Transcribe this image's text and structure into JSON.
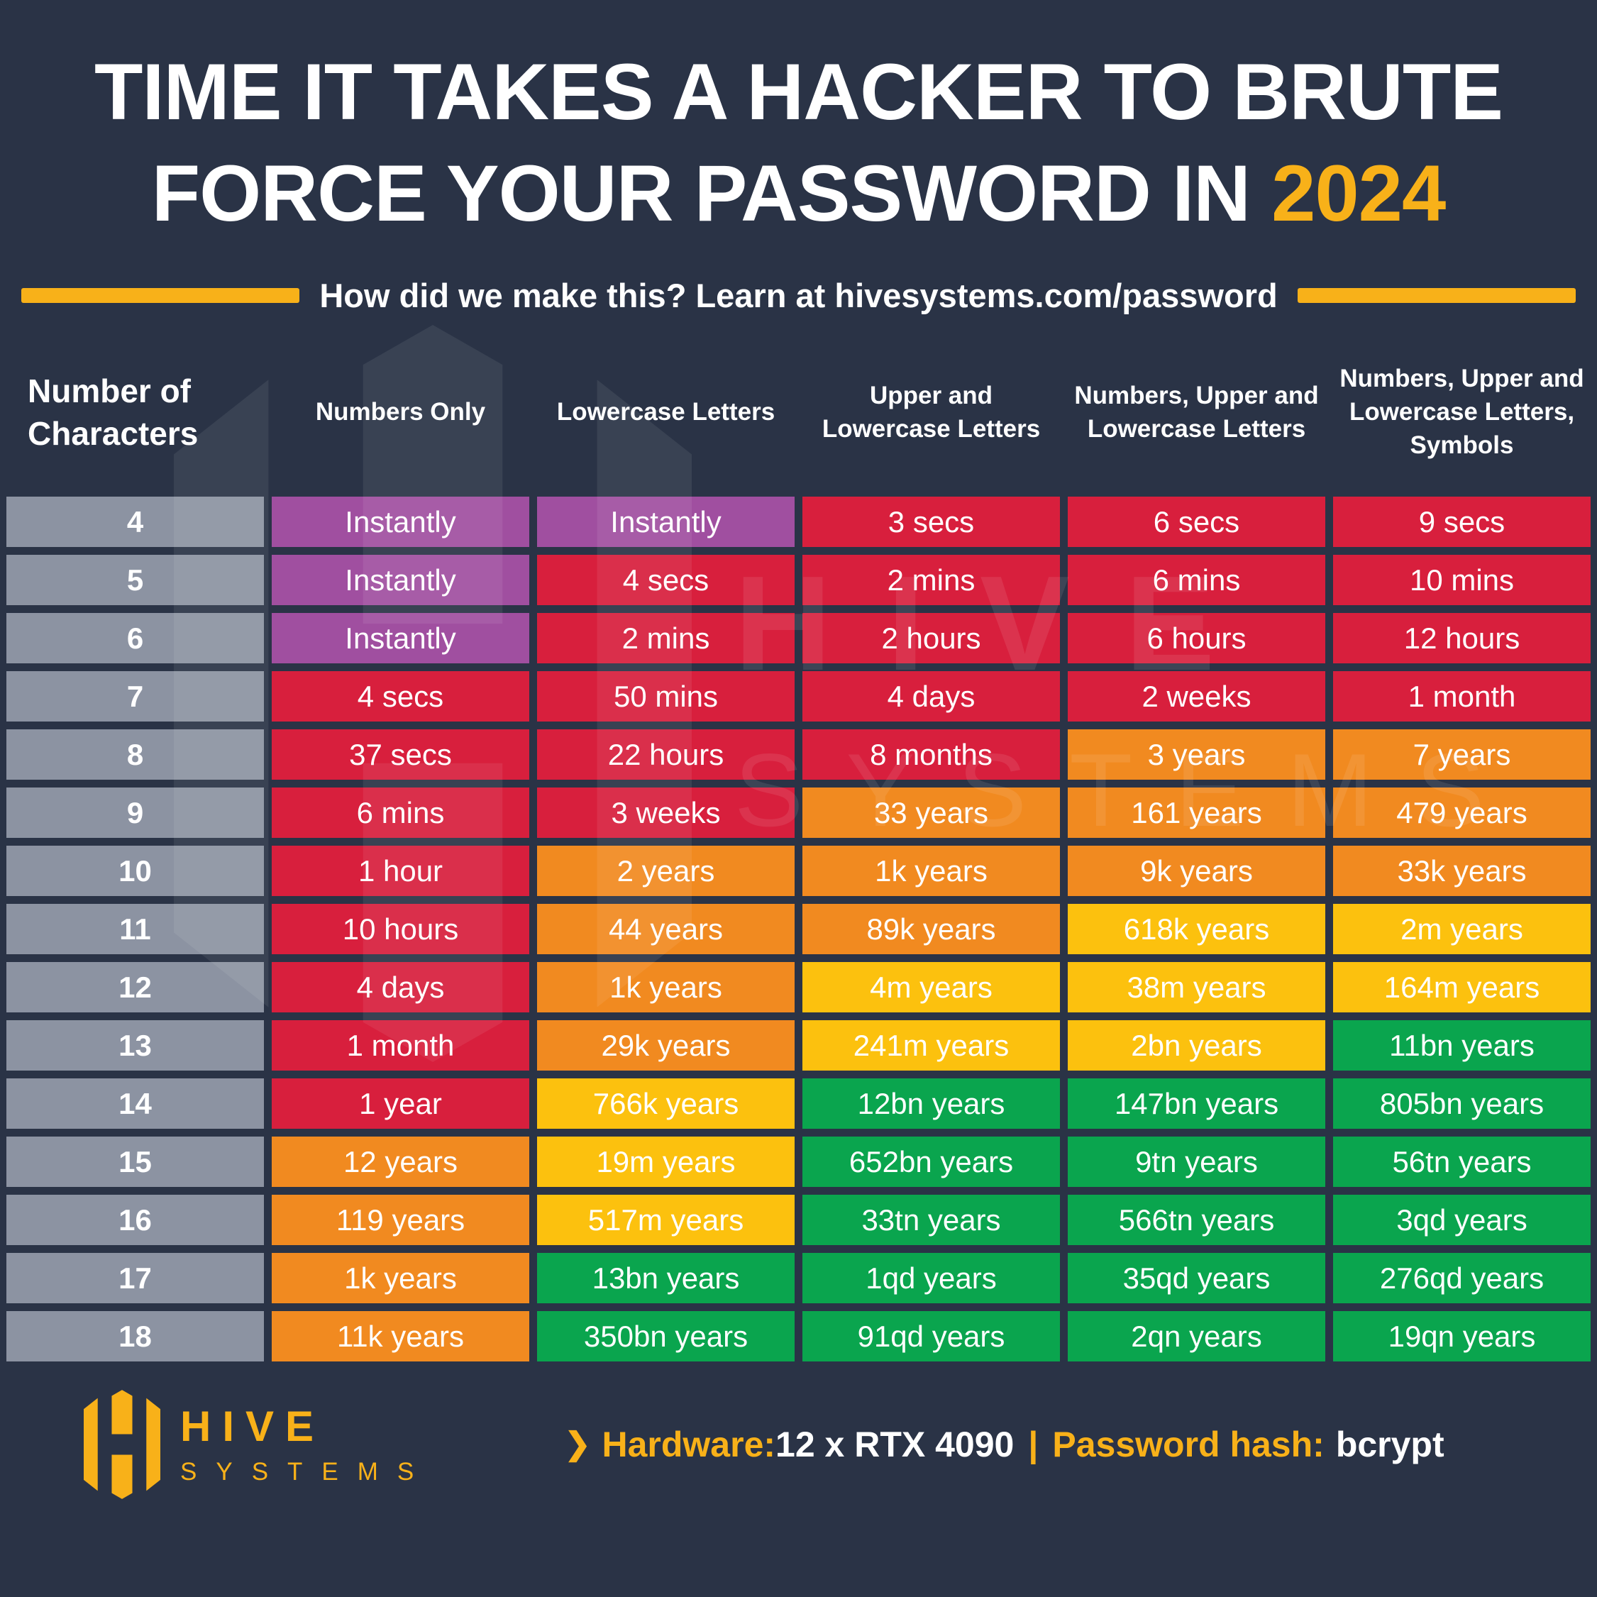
{
  "title": {
    "line1": "TIME IT TAKES A HACKER TO BRUTE",
    "line2_prefix": "FORCE YOUR PASSWORD IN ",
    "year": "2024"
  },
  "subtitle": "How did we make this? Learn at hivesystems.com/password",
  "table": {
    "headers": [
      "Number of Characters",
      "Numbers Only",
      "Lowercase Letters",
      "Upper and Lowercase Letters",
      "Numbers, Upper and Lowercase Letters",
      "Numbers, Upper and Lowercase Letters, Symbols"
    ],
    "rows": [
      {
        "n": "4",
        "cells": [
          [
            "Instantly",
            "p"
          ],
          [
            "Instantly",
            "p"
          ],
          [
            "3 secs",
            "r"
          ],
          [
            "6 secs",
            "r"
          ],
          [
            "9 secs",
            "r"
          ]
        ]
      },
      {
        "n": "5",
        "cells": [
          [
            "Instantly",
            "p"
          ],
          [
            "4 secs",
            "r"
          ],
          [
            "2 mins",
            "r"
          ],
          [
            "6 mins",
            "r"
          ],
          [
            "10 mins",
            "r"
          ]
        ]
      },
      {
        "n": "6",
        "cells": [
          [
            "Instantly",
            "p"
          ],
          [
            "2 mins",
            "r"
          ],
          [
            "2 hours",
            "r"
          ],
          [
            "6 hours",
            "r"
          ],
          [
            "12 hours",
            "r"
          ]
        ]
      },
      {
        "n": "7",
        "cells": [
          [
            "4 secs",
            "r"
          ],
          [
            "50 mins",
            "r"
          ],
          [
            "4 days",
            "r"
          ],
          [
            "2 weeks",
            "r"
          ],
          [
            "1 month",
            "r"
          ]
        ]
      },
      {
        "n": "8",
        "cells": [
          [
            "37 secs",
            "r"
          ],
          [
            "22 hours",
            "r"
          ],
          [
            "8 months",
            "r"
          ],
          [
            "3 years",
            "o"
          ],
          [
            "7 years",
            "o"
          ]
        ]
      },
      {
        "n": "9",
        "cells": [
          [
            "6 mins",
            "r"
          ],
          [
            "3 weeks",
            "r"
          ],
          [
            "33 years",
            "o"
          ],
          [
            "161 years",
            "o"
          ],
          [
            "479 years",
            "o"
          ]
        ]
      },
      {
        "n": "10",
        "cells": [
          [
            "1 hour",
            "r"
          ],
          [
            "2 years",
            "o"
          ],
          [
            "1k years",
            "o"
          ],
          [
            "9k years",
            "o"
          ],
          [
            "33k years",
            "o"
          ]
        ]
      },
      {
        "n": "11",
        "cells": [
          [
            "10 hours",
            "r"
          ],
          [
            "44 years",
            "o"
          ],
          [
            "89k years",
            "o"
          ],
          [
            "618k years",
            "y"
          ],
          [
            "2m years",
            "y"
          ]
        ]
      },
      {
        "n": "12",
        "cells": [
          [
            "4 days",
            "r"
          ],
          [
            "1k years",
            "o"
          ],
          [
            "4m years",
            "y"
          ],
          [
            "38m years",
            "y"
          ],
          [
            "164m years",
            "y"
          ]
        ]
      },
      {
        "n": "13",
        "cells": [
          [
            "1 month",
            "r"
          ],
          [
            "29k years",
            "o"
          ],
          [
            "241m years",
            "y"
          ],
          [
            "2bn years",
            "y"
          ],
          [
            "11bn years",
            "g"
          ]
        ]
      },
      {
        "n": "14",
        "cells": [
          [
            "1 year",
            "r"
          ],
          [
            "766k years",
            "y"
          ],
          [
            "12bn years",
            "g"
          ],
          [
            "147bn years",
            "g"
          ],
          [
            "805bn years",
            "g"
          ]
        ]
      },
      {
        "n": "15",
        "cells": [
          [
            "12 years",
            "o"
          ],
          [
            "19m years",
            "y"
          ],
          [
            "652bn years",
            "g"
          ],
          [
            "9tn years",
            "g"
          ],
          [
            "56tn years",
            "g"
          ]
        ]
      },
      {
        "n": "16",
        "cells": [
          [
            "119 years",
            "o"
          ],
          [
            "517m years",
            "y"
          ],
          [
            "33tn years",
            "g"
          ],
          [
            "566tn years",
            "g"
          ],
          [
            "3qd years",
            "g"
          ]
        ]
      },
      {
        "n": "17",
        "cells": [
          [
            "1k years",
            "o"
          ],
          [
            "13bn years",
            "g"
          ],
          [
            "1qd years",
            "g"
          ],
          [
            "35qd years",
            "g"
          ],
          [
            "276qd years",
            "g"
          ]
        ]
      },
      {
        "n": "18",
        "cells": [
          [
            "11k years",
            "o"
          ],
          [
            "350bn years",
            "g"
          ],
          [
            "91qd years",
            "g"
          ],
          [
            "2qn years",
            "g"
          ],
          [
            "19qn years",
            "g"
          ]
        ]
      }
    ]
  },
  "chart_data": {
    "type": "table",
    "title": "TIME IT TAKES A HACKER TO BRUTE FORCE YOUR PASSWORD IN 2024",
    "subtitle": "How did we make this? Learn at hivesystems.com/password",
    "columns": [
      "Number of Characters",
      "Numbers Only",
      "Lowercase Letters",
      "Upper and Lowercase Letters",
      "Numbers, Upper and Lowercase Letters",
      "Numbers, Upper and Lowercase Letters, Symbols"
    ],
    "rows": [
      [
        4,
        "Instantly",
        "Instantly",
        "3 secs",
        "6 secs",
        "9 secs"
      ],
      [
        5,
        "Instantly",
        "4 secs",
        "2 mins",
        "6 mins",
        "10 mins"
      ],
      [
        6,
        "Instantly",
        "2 mins",
        "2 hours",
        "6 hours",
        "12 hours"
      ],
      [
        7,
        "4 secs",
        "50 mins",
        "4 days",
        "2 weeks",
        "1 month"
      ],
      [
        8,
        "37 secs",
        "22 hours",
        "8 months",
        "3 years",
        "7 years"
      ],
      [
        9,
        "6 mins",
        "3 weeks",
        "33 years",
        "161 years",
        "479 years"
      ],
      [
        10,
        "1 hour",
        "2 years",
        "1k years",
        "9k years",
        "33k years"
      ],
      [
        11,
        "10 hours",
        "44 years",
        "89k years",
        "618k years",
        "2m years"
      ],
      [
        12,
        "4 days",
        "1k years",
        "4m years",
        "38m years",
        "164m years"
      ],
      [
        13,
        "1 month",
        "29k years",
        "241m years",
        "2bn years",
        "11bn years"
      ],
      [
        14,
        "1 year",
        "766k years",
        "12bn years",
        "147bn years",
        "805bn years"
      ],
      [
        15,
        "12 years",
        "19m years",
        "652bn years",
        "9tn years",
        "56tn years"
      ],
      [
        16,
        "119 years",
        "517m years",
        "33tn years",
        "566tn years",
        "3qd years"
      ],
      [
        17,
        "1k years",
        "13bn years",
        "1qd years",
        "35qd years",
        "276qd years"
      ],
      [
        18,
        "11k years",
        "350bn years",
        "91qd years",
        "2qn years",
        "19qn years"
      ]
    ],
    "cell_colors": [
      [
        "p",
        "p",
        "r",
        "r",
        "r"
      ],
      [
        "p",
        "r",
        "r",
        "r",
        "r"
      ],
      [
        "p",
        "r",
        "r",
        "r",
        "r"
      ],
      [
        "r",
        "r",
        "r",
        "r",
        "r"
      ],
      [
        "r",
        "r",
        "r",
        "o",
        "o"
      ],
      [
        "r",
        "r",
        "o",
        "o",
        "o"
      ],
      [
        "r",
        "o",
        "o",
        "o",
        "o"
      ],
      [
        "r",
        "o",
        "o",
        "y",
        "y"
      ],
      [
        "r",
        "o",
        "y",
        "y",
        "y"
      ],
      [
        "r",
        "o",
        "y",
        "y",
        "g"
      ],
      [
        "r",
        "y",
        "g",
        "g",
        "g"
      ],
      [
        "o",
        "y",
        "g",
        "g",
        "g"
      ],
      [
        "o",
        "y",
        "g",
        "g",
        "g"
      ],
      [
        "o",
        "g",
        "g",
        "g",
        "g"
      ],
      [
        "o",
        "g",
        "g",
        "g",
        "g"
      ]
    ],
    "color_codes": {
      "p": "purple",
      "r": "red",
      "o": "orange",
      "y": "yellow",
      "g": "green"
    }
  },
  "watermark": {
    "line1": "HIVE",
    "line2": "SYSTEMS"
  },
  "footer": {
    "brand_name": "HIVE",
    "brand_sub": "SYSTEMS",
    "chevron": "❯",
    "hardware_label": "Hardware:",
    "hardware_value": "12 x RTX 4090",
    "separator": "|",
    "hash_label": "Password hash:",
    "hash_value": "bcrypt"
  },
  "colors": {
    "bg": "#2A3346",
    "accent": "#F8B119",
    "purple": "#A04FA0",
    "red": "#D81F3D",
    "orange": "#F18A20",
    "yellow": "#FCC10E",
    "green": "#0AA54E",
    "gray": "#8C93A2",
    "white": "#FFFFFF"
  }
}
